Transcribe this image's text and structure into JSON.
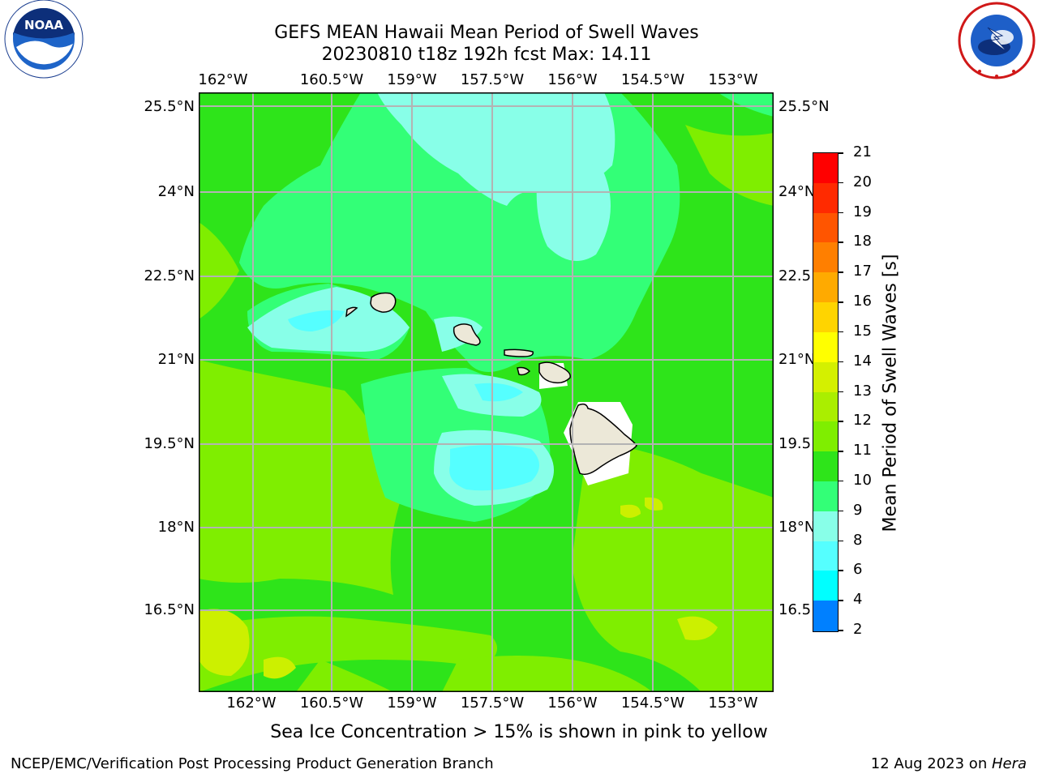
{
  "header": {
    "title_line1": "GEFS MEAN Hawaii Mean Period of Swell Waves",
    "title_line2": "20230810 t18z 192h fcst   Max: 14.11"
  },
  "logos": {
    "left": {
      "name": "noaa-logo",
      "text": "NOAA",
      "ring_text": "NATIONAL OCEANIC AND ATMOSPHERIC ADMINISTRATION · U.S. DEPARTMENT OF COMMERCE"
    },
    "right": {
      "name": "nws-logo",
      "ring_text": "NATIONAL WEATHER SERVICE"
    }
  },
  "map": {
    "lon_labels": [
      "162°W",
      "160.5°W",
      "159°W",
      "157.5°W",
      "156°W",
      "154.5°W",
      "153°W"
    ],
    "lat_labels": [
      "25.5°N",
      "24°N",
      "22.5°N",
      "21°N",
      "19.5°N",
      "18°N",
      "16.5°N"
    ],
    "lat_labels_right": [
      "25.5°N",
      "24°N",
      "22.5",
      "21°N",
      "19.5",
      "18°N",
      "16.5"
    ],
    "background_color": "#2ee41a",
    "land_color": "#ece8d8"
  },
  "colorbar": {
    "label": "Mean Period of Swell Waves [s]",
    "ticks": [
      "21",
      "20",
      "19",
      "18",
      "17",
      "16",
      "15",
      "14",
      "13",
      "12",
      "11",
      "10",
      "9",
      "8",
      "6",
      "4",
      "2"
    ],
    "colors": [
      "#ff0000",
      "#ff2a00",
      "#ff5500",
      "#ff7f00",
      "#ffaa00",
      "#ffd400",
      "#ffff00",
      "#d4f000",
      "#aaee00",
      "#7fee00",
      "#2ee41a",
      "#33ff77",
      "#88ffe8",
      "#55ffff",
      "#00ffff",
      "#0080ff",
      "#0000ff"
    ]
  },
  "notes": {
    "sea_ice": "Sea Ice Concentration > 15% is shown in pink to yellow"
  },
  "footer": {
    "left": "NCEP/EMC/Verification Post Processing Product Generation Branch",
    "right_prefix": "12 Aug 2023 on ",
    "right_italic": "Hera"
  }
}
